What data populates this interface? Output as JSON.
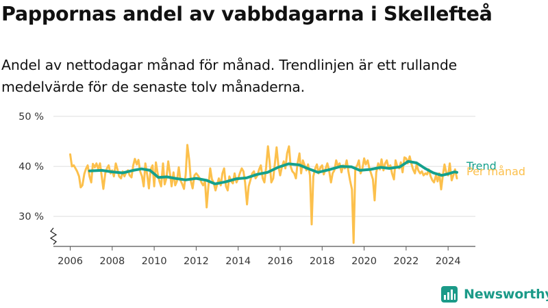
{
  "title": "Pappornas andel av vabbdagarna i Skellefteå",
  "subtitle": "Andel av nettodagar månad för månad. Trendlinjen är ett rullande medelvärde för de senaste tolv månaderna.",
  "brand": "Newsworthy",
  "colors": {
    "monthly": "#fcc04c",
    "trend": "#14a08c",
    "axis": "#555555",
    "grid": "#dddddd",
    "brand": "#1b9a88"
  },
  "chart_data": {
    "type": "line",
    "title": "Pappornas andel av vabbdagarna i Skellefteå",
    "xlabel": "",
    "ylabel": "",
    "x_ticks": [
      2006,
      2008,
      2010,
      2012,
      2014,
      2016,
      2018,
      2020,
      2022,
      2024
    ],
    "x_tick_labels": [
      "2006",
      "2008",
      "2010",
      "2012",
      "2014",
      "2016",
      "2018",
      "2020",
      "2022",
      "2024"
    ],
    "xlim": [
      2005.2,
      2025.3
    ],
    "y_ticks": [
      30,
      40,
      50
    ],
    "y_tick_labels": [
      "30 %",
      "40 %",
      "50 %"
    ],
    "ylim": [
      24,
      50
    ],
    "y_axis_broken": true,
    "grid": true,
    "legend": "inline-right",
    "series": [
      {
        "name": "Per månad",
        "color": "#fcc04c",
        "points": [
          [
            2006.0,
            42.4
          ],
          [
            2006.08,
            40.0
          ],
          [
            2006.17,
            40.2
          ],
          [
            2006.25,
            39.6
          ],
          [
            2006.33,
            39.0
          ],
          [
            2006.42,
            38.0
          ],
          [
            2006.5,
            35.8
          ],
          [
            2006.58,
            36.2
          ],
          [
            2006.67,
            38.5
          ],
          [
            2006.75,
            39.5
          ],
          [
            2006.83,
            40.2
          ],
          [
            2006.92,
            38.0
          ],
          [
            2007.0,
            36.8
          ],
          [
            2007.08,
            40.5
          ],
          [
            2007.17,
            39.8
          ],
          [
            2007.25,
            40.6
          ],
          [
            2007.33,
            39.5
          ],
          [
            2007.42,
            40.6
          ],
          [
            2007.5,
            38.0
          ],
          [
            2007.58,
            35.5
          ],
          [
            2007.67,
            38.6
          ],
          [
            2007.75,
            39.6
          ],
          [
            2007.83,
            40.2
          ],
          [
            2007.92,
            38.6
          ],
          [
            2008.0,
            39.2
          ],
          [
            2008.08,
            38.0
          ],
          [
            2008.17,
            40.6
          ],
          [
            2008.25,
            39.4
          ],
          [
            2008.33,
            38.0
          ],
          [
            2008.42,
            37.6
          ],
          [
            2008.5,
            39.0
          ],
          [
            2008.58,
            38.0
          ],
          [
            2008.67,
            38.8
          ],
          [
            2008.75,
            39.2
          ],
          [
            2008.83,
            38.2
          ],
          [
            2008.92,
            37.8
          ],
          [
            2009.0,
            40.2
          ],
          [
            2009.08,
            41.5
          ],
          [
            2009.17,
            40.4
          ],
          [
            2009.25,
            41.3
          ],
          [
            2009.33,
            39.0
          ],
          [
            2009.42,
            38.0
          ],
          [
            2009.5,
            36.0
          ],
          [
            2009.58,
            40.6
          ],
          [
            2009.67,
            38.2
          ],
          [
            2009.75,
            35.6
          ],
          [
            2009.83,
            39.4
          ],
          [
            2009.92,
            40.2
          ],
          [
            2010.0,
            36.0
          ],
          [
            2010.08,
            40.8
          ],
          [
            2010.17,
            38.5
          ],
          [
            2010.25,
            37.0
          ],
          [
            2010.33,
            36.0
          ],
          [
            2010.42,
            40.6
          ],
          [
            2010.5,
            36.4
          ],
          [
            2010.58,
            37.6
          ],
          [
            2010.67,
            41.0
          ],
          [
            2010.75,
            38.6
          ],
          [
            2010.83,
            36.0
          ],
          [
            2010.92,
            38.8
          ],
          [
            2011.0,
            36.2
          ],
          [
            2011.08,
            37.0
          ],
          [
            2011.17,
            39.8
          ],
          [
            2011.25,
            37.2
          ],
          [
            2011.33,
            36.5
          ],
          [
            2011.42,
            35.5
          ],
          [
            2011.5,
            38.4
          ],
          [
            2011.58,
            44.3
          ],
          [
            2011.67,
            41.2
          ],
          [
            2011.75,
            37.0
          ],
          [
            2011.83,
            35.6
          ],
          [
            2011.92,
            38.2
          ],
          [
            2012.0,
            38.6
          ],
          [
            2012.08,
            38.2
          ],
          [
            2012.17,
            37.6
          ],
          [
            2012.25,
            36.8
          ],
          [
            2012.33,
            36.2
          ],
          [
            2012.42,
            37.0
          ],
          [
            2012.5,
            31.8
          ],
          [
            2012.58,
            36.0
          ],
          [
            2012.67,
            39.6
          ],
          [
            2012.75,
            37.4
          ],
          [
            2012.83,
            36.8
          ],
          [
            2012.92,
            35.2
          ],
          [
            2013.0,
            36.4
          ],
          [
            2013.08,
            37.6
          ],
          [
            2013.17,
            36.2
          ],
          [
            2013.25,
            38.6
          ],
          [
            2013.33,
            39.6
          ],
          [
            2013.42,
            36.0
          ],
          [
            2013.5,
            35.2
          ],
          [
            2013.58,
            38.0
          ],
          [
            2013.67,
            37.0
          ],
          [
            2013.75,
            36.6
          ],
          [
            2013.83,
            38.6
          ],
          [
            2013.92,
            36.8
          ],
          [
            2014.0,
            37.6
          ],
          [
            2014.08,
            38.6
          ],
          [
            2014.17,
            39.6
          ],
          [
            2014.25,
            39.0
          ],
          [
            2014.33,
            36.8
          ],
          [
            2014.42,
            32.4
          ],
          [
            2014.5,
            36.0
          ],
          [
            2014.58,
            37.2
          ],
          [
            2014.67,
            38.6
          ],
          [
            2014.75,
            39.0
          ],
          [
            2014.83,
            37.6
          ],
          [
            2014.92,
            38.2
          ],
          [
            2015.0,
            39.4
          ],
          [
            2015.08,
            40.2
          ],
          [
            2015.17,
            37.6
          ],
          [
            2015.25,
            36.8
          ],
          [
            2015.33,
            39.8
          ],
          [
            2015.42,
            44.0
          ],
          [
            2015.5,
            40.8
          ],
          [
            2015.58,
            36.8
          ],
          [
            2015.67,
            37.6
          ],
          [
            2015.75,
            40.6
          ],
          [
            2015.83,
            43.8
          ],
          [
            2015.92,
            40.0
          ],
          [
            2016.0,
            38.2
          ],
          [
            2016.08,
            39.8
          ],
          [
            2016.17,
            41.0
          ],
          [
            2016.25,
            39.6
          ],
          [
            2016.33,
            42.6
          ],
          [
            2016.42,
            44.0
          ],
          [
            2016.5,
            40.0
          ],
          [
            2016.58,
            39.0
          ],
          [
            2016.67,
            38.6
          ],
          [
            2016.75,
            37.6
          ],
          [
            2016.83,
            40.6
          ],
          [
            2016.92,
            42.6
          ],
          [
            2017.0,
            38.6
          ],
          [
            2017.08,
            41.2
          ],
          [
            2017.17,
            40.2
          ],
          [
            2017.25,
            39.2
          ],
          [
            2017.33,
            40.4
          ],
          [
            2017.42,
            38.2
          ],
          [
            2017.5,
            28.4
          ],
          [
            2017.58,
            38.0
          ],
          [
            2017.67,
            39.6
          ],
          [
            2017.75,
            40.4
          ],
          [
            2017.83,
            38.6
          ],
          [
            2017.92,
            39.8
          ],
          [
            2018.0,
            40.2
          ],
          [
            2018.08,
            38.4
          ],
          [
            2018.17,
            39.6
          ],
          [
            2018.25,
            40.6
          ],
          [
            2018.33,
            39.2
          ],
          [
            2018.42,
            36.8
          ],
          [
            2018.5,
            38.6
          ],
          [
            2018.58,
            39.2
          ],
          [
            2018.67,
            41.2
          ],
          [
            2018.75,
            40.0
          ],
          [
            2018.83,
            40.6
          ],
          [
            2018.92,
            38.8
          ],
          [
            2019.0,
            40.2
          ],
          [
            2019.08,
            39.6
          ],
          [
            2019.17,
            41.2
          ],
          [
            2019.25,
            39.0
          ],
          [
            2019.33,
            37.2
          ],
          [
            2019.42,
            35.4
          ],
          [
            2019.5,
            24.7
          ],
          [
            2019.58,
            39.6
          ],
          [
            2019.67,
            40.2
          ],
          [
            2019.75,
            41.2
          ],
          [
            2019.83,
            38.6
          ],
          [
            2019.92,
            39.6
          ],
          [
            2020.0,
            41.6
          ],
          [
            2020.08,
            40.4
          ],
          [
            2020.17,
            41.2
          ],
          [
            2020.25,
            39.6
          ],
          [
            2020.33,
            38.6
          ],
          [
            2020.42,
            37.4
          ],
          [
            2020.5,
            33.2
          ],
          [
            2020.58,
            38.8
          ],
          [
            2020.67,
            40.6
          ],
          [
            2020.75,
            39.4
          ],
          [
            2020.83,
            41.4
          ],
          [
            2020.92,
            39.2
          ],
          [
            2021.0,
            40.6
          ],
          [
            2021.08,
            41.2
          ],
          [
            2021.17,
            39.6
          ],
          [
            2021.25,
            40.2
          ],
          [
            2021.33,
            38.6
          ],
          [
            2021.42,
            37.4
          ],
          [
            2021.5,
            41.2
          ],
          [
            2021.58,
            40.0
          ],
          [
            2021.67,
            39.6
          ],
          [
            2021.75,
            40.8
          ],
          [
            2021.83,
            38.8
          ],
          [
            2021.92,
            41.8
          ],
          [
            2022.0,
            41.6
          ],
          [
            2022.08,
            40.6
          ],
          [
            2022.17,
            42.0
          ],
          [
            2022.25,
            40.6
          ],
          [
            2022.33,
            39.4
          ],
          [
            2022.42,
            38.6
          ],
          [
            2022.5,
            40.4
          ],
          [
            2022.58,
            39.2
          ],
          [
            2022.67,
            38.6
          ],
          [
            2022.75,
            39.0
          ],
          [
            2022.83,
            38.2
          ],
          [
            2022.92,
            38.6
          ],
          [
            2023.0,
            38.4
          ],
          [
            2023.08,
            39.4
          ],
          [
            2023.17,
            38.0
          ],
          [
            2023.25,
            37.2
          ],
          [
            2023.33,
            36.8
          ],
          [
            2023.42,
            38.2
          ],
          [
            2023.5,
            37.0
          ],
          [
            2023.58,
            38.6
          ],
          [
            2023.67,
            35.4
          ],
          [
            2023.75,
            38.2
          ],
          [
            2023.83,
            40.4
          ],
          [
            2023.92,
            38.6
          ],
          [
            2024.0,
            38.2
          ],
          [
            2024.08,
            40.6
          ],
          [
            2024.17,
            37.2
          ],
          [
            2024.25,
            38.2
          ],
          [
            2024.33,
            39.4
          ],
          [
            2024.42,
            37.6
          ]
        ]
      },
      {
        "name": "Trend",
        "color": "#14a08c",
        "points": [
          [
            2006.92,
            39.1
          ],
          [
            2007.5,
            39.2
          ],
          [
            2008.0,
            38.9
          ],
          [
            2008.5,
            38.7
          ],
          [
            2009.0,
            39.2
          ],
          [
            2009.4,
            39.5
          ],
          [
            2009.8,
            39.2
          ],
          [
            2010.2,
            37.8
          ],
          [
            2010.6,
            37.9
          ],
          [
            2011.0,
            37.6
          ],
          [
            2011.5,
            37.3
          ],
          [
            2012.0,
            37.6
          ],
          [
            2012.5,
            37.2
          ],
          [
            2012.9,
            36.5
          ],
          [
            2013.4,
            36.9
          ],
          [
            2013.9,
            37.5
          ],
          [
            2014.4,
            37.7
          ],
          [
            2014.9,
            38.4
          ],
          [
            2015.4,
            38.8
          ],
          [
            2015.9,
            39.8
          ],
          [
            2016.4,
            40.5
          ],
          [
            2016.9,
            40.3
          ],
          [
            2017.3,
            39.6
          ],
          [
            2017.8,
            38.8
          ],
          [
            2018.3,
            39.3
          ],
          [
            2018.9,
            40.0
          ],
          [
            2019.4,
            39.9
          ],
          [
            2019.8,
            39.2
          ],
          [
            2020.3,
            39.4
          ],
          [
            2020.8,
            39.8
          ],
          [
            2021.2,
            39.6
          ],
          [
            2021.7,
            39.9
          ],
          [
            2022.1,
            41.0
          ],
          [
            2022.5,
            40.7
          ],
          [
            2022.9,
            39.6
          ],
          [
            2023.3,
            38.7
          ],
          [
            2023.7,
            38.2
          ],
          [
            2024.0,
            38.5
          ],
          [
            2024.3,
            38.9
          ],
          [
            2024.42,
            38.8
          ]
        ]
      }
    ]
  }
}
